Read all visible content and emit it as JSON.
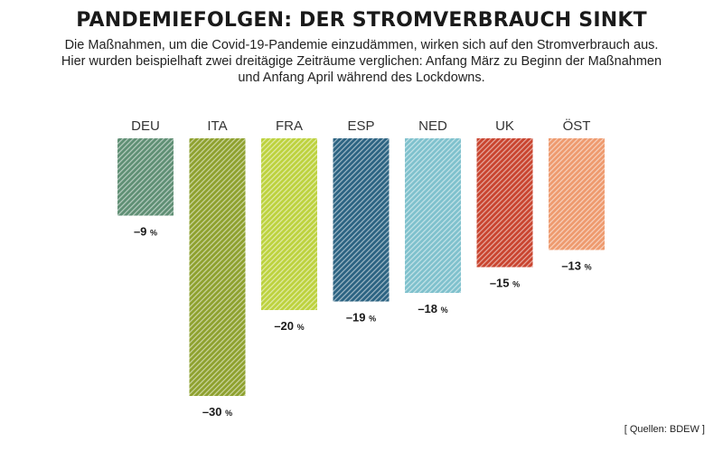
{
  "title": "PANDEMIEFOLGEN: DER STROMVERBRAUCH SINKT",
  "subtitle_lines": [
    "Die Maßnahmen, um die Covid-19-Pandemie einzudämmen, wirken sich auf den Stromverbrauch aus.",
    "Hier wurden beispielhaft zwei dreitägige Zeiträume verglichen: Anfang März zu Beginn der Maßnahmen",
    "und Anfang April während des Lockdowns."
  ],
  "source": "[ Quellen: BDEW ]",
  "chart_data": {
    "type": "bar",
    "categories": [
      "DEU",
      "ITA",
      "FRA",
      "ESP",
      "NED",
      "UK",
      "ÖST"
    ],
    "values": [
      -9,
      -30,
      -20,
      -19,
      -18,
      -15,
      -13
    ],
    "value_unit": "%",
    "colors": [
      "#5f8f74",
      "#8ea12e",
      "#bdd23e",
      "#2c6382",
      "#7fc1cd",
      "#c9442f",
      "#ee9a6e"
    ],
    "ylim": [
      -30,
      0
    ],
    "grid": false
  }
}
